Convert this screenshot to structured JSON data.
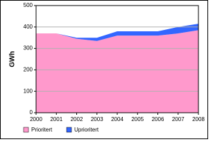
{
  "chart_data": {
    "type": "stacked-area",
    "y_label": "GWh",
    "categories": [
      "2000",
      "2001",
      "2002",
      "2003",
      "2004",
      "2005",
      "2006",
      "2007",
      "2008"
    ],
    "series": [
      {
        "name": "Prioritert",
        "color": "#ff99cc",
        "values": [
          370,
          370,
          345,
          335,
          360,
          360,
          360,
          370,
          385
        ]
      },
      {
        "name": "Uprioritert",
        "color": "#3366ff",
        "values": [
          0,
          0,
          5,
          15,
          20,
          20,
          20,
          30,
          30
        ]
      }
    ],
    "ylim": [
      0,
      500
    ],
    "yticks": [
      0,
      100,
      200,
      300,
      400,
      500
    ],
    "grid": true
  }
}
